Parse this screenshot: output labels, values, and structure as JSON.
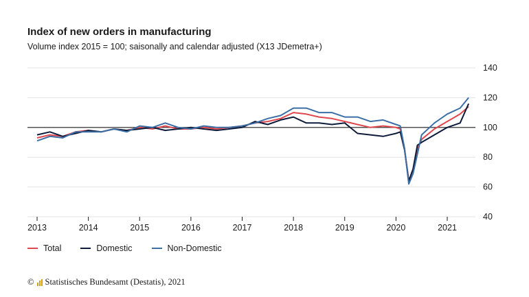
{
  "chart_data": {
    "type": "line",
    "title": "Index of new orders in manufacturing",
    "subtitle": "Volume index 2015 = 100; saisonally and calendar adjusted (X13 JDemetra+)",
    "x_tick_labels": [
      "2013",
      "2014",
      "2015",
      "2016",
      "2017",
      "2018",
      "2019",
      "2020",
      "2021"
    ],
    "y_tick_labels": [
      "40",
      "60",
      "80",
      "100",
      "120",
      "140"
    ],
    "ylim": [
      40,
      140
    ],
    "xlim": [
      "2013-01",
      "2021-06"
    ],
    "reference_line": 100,
    "grid": true,
    "legend_position": "bottom-left",
    "x": [
      "2013-01",
      "2013-04",
      "2013-07",
      "2013-10",
      "2014-01",
      "2014-04",
      "2014-07",
      "2014-10",
      "2015-01",
      "2015-04",
      "2015-07",
      "2015-10",
      "2016-01",
      "2016-04",
      "2016-07",
      "2016-10",
      "2017-01",
      "2017-04",
      "2017-07",
      "2017-10",
      "2018-01",
      "2018-04",
      "2018-07",
      "2018-10",
      "2019-01",
      "2019-04",
      "2019-07",
      "2019-10",
      "2020-01",
      "2020-02",
      "2020-03",
      "2020-04",
      "2020-05",
      "2020-06",
      "2020-07",
      "2020-10",
      "2021-01",
      "2021-04",
      "2021-06"
    ],
    "series": [
      {
        "name": "Total",
        "color": "#e0474c",
        "values": [
          93,
          95,
          94,
          97,
          98,
          97,
          99,
          98,
          100,
          99,
          101,
          99,
          99,
          100,
          99,
          100,
          101,
          103,
          104,
          106,
          110,
          109,
          107,
          106,
          104,
          102,
          100,
          101,
          100,
          99,
          86,
          64,
          72,
          85,
          92,
          99,
          104,
          109,
          114
        ]
      },
      {
        "name": "Domestic",
        "color": "#0d1b3a",
        "values": [
          95,
          97,
          94,
          96,
          98,
          97,
          99,
          98,
          99,
          100,
          98,
          99,
          100,
          99,
          98,
          99,
          100,
          104,
          102,
          105,
          107,
          103,
          103,
          102,
          103,
          96,
          95,
          94,
          96,
          97,
          85,
          64,
          72,
          88,
          90,
          95,
          100,
          103,
          116
        ]
      },
      {
        "name": "Non-Domestic",
        "color": "#3b6ea5",
        "values": [
          91,
          94,
          93,
          97,
          97,
          97,
          99,
          97,
          101,
          100,
          103,
          100,
          99,
          101,
          100,
          100,
          101,
          103,
          106,
          108,
          113,
          113,
          110,
          110,
          107,
          107,
          104,
          105,
          102,
          101,
          86,
          62,
          69,
          82,
          95,
          103,
          109,
          113,
          120
        ]
      }
    ]
  },
  "legend": {
    "total": "Total",
    "domestic": "Domestic",
    "non_domestic": "Non-Domestic"
  },
  "source": {
    "copyright": "©",
    "text": "Statistisches Bundesamt (Destatis), 2021",
    "logo_color": "#d4a017"
  }
}
